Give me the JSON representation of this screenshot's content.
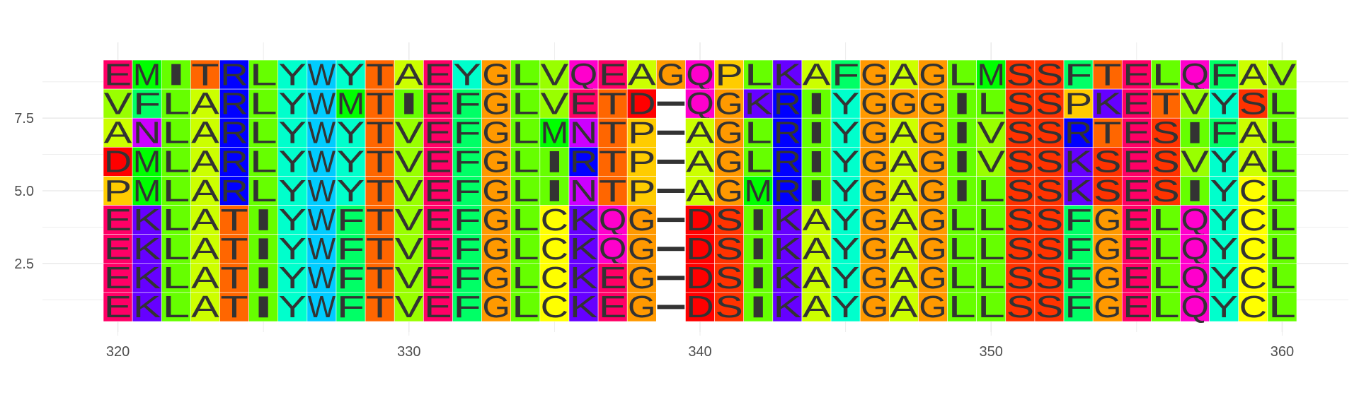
{
  "chart_data": {
    "type": "heatmap",
    "title": "",
    "xlabel": "",
    "ylabel": "",
    "x_start": 320,
    "x_end": 360,
    "xlim": [
      319.5,
      360.5
    ],
    "ylim": [
      0.5,
      9.5
    ],
    "x_ticks": [
      320,
      330,
      340,
      350,
      360
    ],
    "y_ticks": [
      2.5,
      5.0,
      7.5
    ],
    "x_tick_labels": [
      "320",
      "330",
      "340",
      "350",
      "360"
    ],
    "y_tick_labels": [
      "2.5",
      "5.0",
      "7.5"
    ],
    "grid": true,
    "sequences_top_to_bottom": [
      "EMITRLYWYTAEYGLVQEAGQPLKAFGAGLMSSFTELQFAV",
      "VFLARLYWMTIEFGLVETD-QGKRIYGGGILSSPKETVYSL",
      "ANLARLYWYTVEFGLMNTP-AGLRIYGAGIVSSRTESIFAL",
      "DMLARLYWYTVEFGLIRTP-AGLRIYGAGIVSSKSESVYAL",
      "PMLARLYWYTVEFGLINTP-AGMRIYGAGILSSKSESIYCL",
      "EKLATIYWFTVEFGLCKQG-DSIKAYGAGLLSSFGELQYCL",
      "EKLATIYWFTVEFGLCKQG-DSIKAYGAGLLSSFGELQYCL",
      "EKLATIYWFTVEFGLCKEG-DSIKAYGAGLLSSFGELQYCL",
      "EKLATIYWFTVEFGLCKEG-DSIKAYGAGLLSSFGELQYCL"
    ],
    "residue_colors": {
      "A": "#ccff00",
      "V": "#99ff00",
      "L": "#66ff00",
      "I": "#66ff00",
      "M": "#00ff00",
      "F": "#00ff66",
      "W": "#00ccff",
      "P": "#ffcc00",
      "G": "#ff9900",
      "C": "#ffff00",
      "S": "#ff3300",
      "T": "#ff6600",
      "Y": "#00ffcc",
      "N": "#cc00ff",
      "Q": "#ff00cc",
      "D": "#ff0000",
      "E": "#ff0066",
      "K": "#6600ff",
      "R": "#0000ff",
      "H": "#0066ff",
      "-": "#ffffff"
    }
  }
}
